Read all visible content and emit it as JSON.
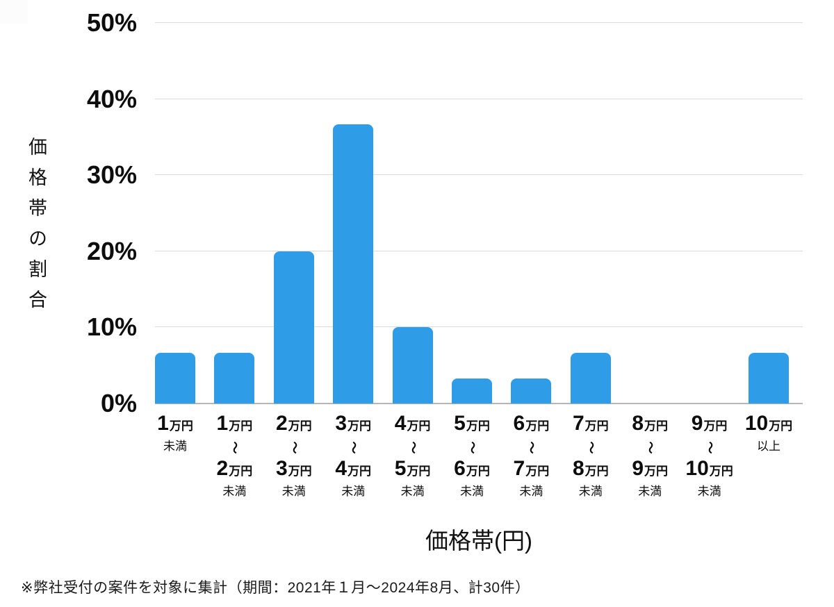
{
  "chart_data": {
    "type": "bar",
    "title": "",
    "xlabel": "価格帯(円)",
    "ylabel": "価格帯の割合",
    "ylim": [
      0,
      50
    ],
    "grid": "horizontal",
    "legend": "none",
    "bar_color": "#2F9CE8",
    "gridline_color": "#dadada",
    "baseline_color": "#b5b5b5",
    "yticks": [
      {
        "value": 0,
        "label": "0%"
      },
      {
        "value": 10,
        "label": "10%"
      },
      {
        "value": 20,
        "label": "20%"
      },
      {
        "value": 30,
        "label": "30%"
      },
      {
        "value": 40,
        "label": "40%"
      },
      {
        "value": 50,
        "label": "50%"
      }
    ],
    "categories": [
      {
        "num1": "1",
        "unit1": "万円",
        "suffix": "未満"
      },
      {
        "num1": "1",
        "unit1": "万円",
        "tilde": "〜",
        "num2": "2",
        "unit2": "万円",
        "suffix": "未満"
      },
      {
        "num1": "2",
        "unit1": "万円",
        "tilde": "〜",
        "num2": "3",
        "unit2": "万円",
        "suffix": "未満"
      },
      {
        "num1": "3",
        "unit1": "万円",
        "tilde": "〜",
        "num2": "4",
        "unit2": "万円",
        "suffix": "未満"
      },
      {
        "num1": "4",
        "unit1": "万円",
        "tilde": "〜",
        "num2": "5",
        "unit2": "万円",
        "suffix": "未満"
      },
      {
        "num1": "5",
        "unit1": "万円",
        "tilde": "〜",
        "num2": "6",
        "unit2": "万円",
        "suffix": "未満"
      },
      {
        "num1": "6",
        "unit1": "万円",
        "tilde": "〜",
        "num2": "7",
        "unit2": "万円",
        "suffix": "未満"
      },
      {
        "num1": "7",
        "unit1": "万円",
        "tilde": "〜",
        "num2": "8",
        "unit2": "万円",
        "suffix": "未満"
      },
      {
        "num1": "8",
        "unit1": "万円",
        "tilde": "〜",
        "num2": "9",
        "unit2": "万円",
        "suffix": "未満"
      },
      {
        "num1": "9",
        "unit1": "万円",
        "tilde": "〜",
        "num2": "10",
        "unit2": "万円",
        "suffix": "未満"
      },
      {
        "num1": "10",
        "unit1": "万円",
        "suffix": "以上"
      }
    ],
    "values": [
      6.7,
      6.7,
      20,
      36.7,
      10,
      3.3,
      3.3,
      6.7,
      0,
      0,
      6.7
    ],
    "footnote": "※弊社受付の案件を対象に集計（期間：2021年１月〜2024年8月、計30件）"
  }
}
